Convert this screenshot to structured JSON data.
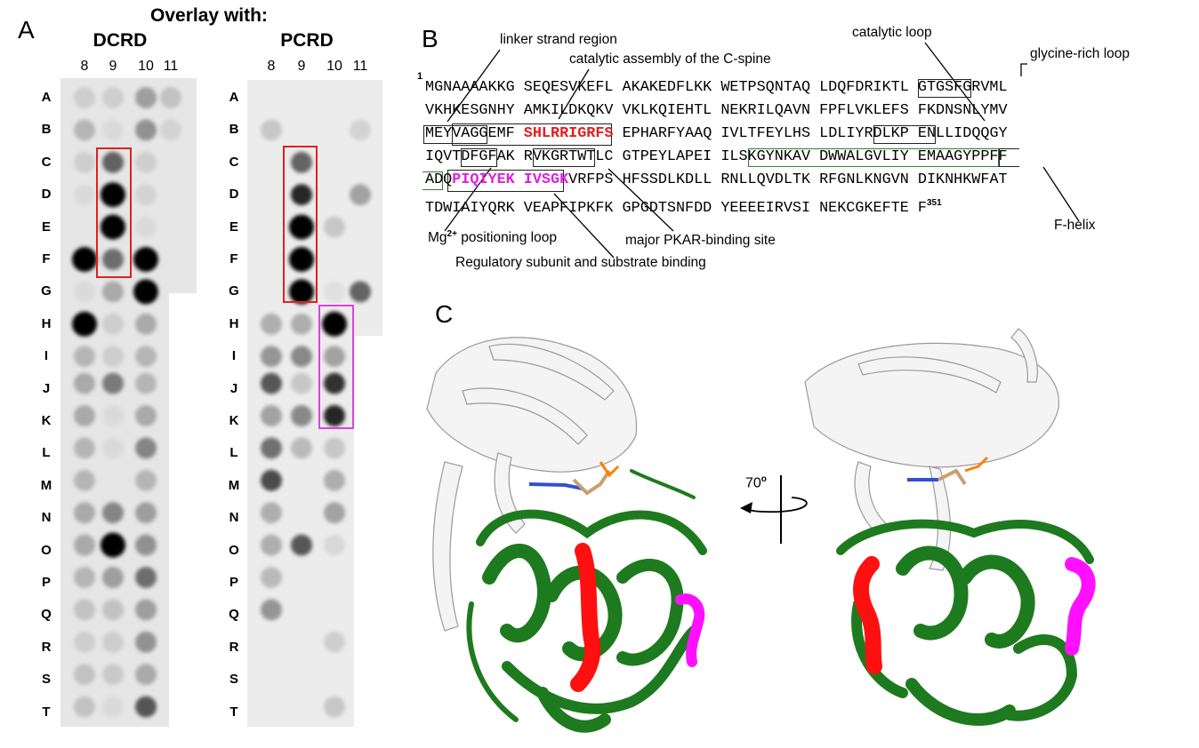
{
  "panelA": {
    "letter": "A",
    "title": "Overlay with:",
    "membranes": [
      {
        "name": "DCRD",
        "columns": [
          "8",
          "9",
          "10",
          "11"
        ]
      },
      {
        "name": "PCRD",
        "columns": [
          "8",
          "9",
          "10",
          "11"
        ]
      }
    ],
    "rows": [
      "A",
      "B",
      "C",
      "D",
      "E",
      "F",
      "G",
      "H",
      "I",
      "J",
      "K",
      "L",
      "M",
      "N",
      "O",
      "P",
      "Q",
      "R",
      "S",
      "T"
    ],
    "spot_intensity_DCRD": [
      [
        0.1,
        0.1,
        0.3,
        0.15
      ],
      [
        0.2,
        0.05,
        0.35,
        0.08
      ],
      [
        0.1,
        0.55,
        0.1,
        0
      ],
      [
        0.05,
        0.95,
        0.08,
        0
      ],
      [
        0,
        0.95,
        0.05,
        0
      ],
      [
        1,
        0.5,
        1,
        0
      ],
      [
        0.05,
        0.25,
        1,
        0
      ],
      [
        1,
        0.1,
        0.25
      ],
      [
        0.2,
        0.1,
        0.2
      ],
      [
        0.25,
        0.45,
        0.2
      ],
      [
        0.25,
        0.05,
        0.25
      ],
      [
        0.2,
        0.05,
        0.4
      ],
      [
        0.2,
        0,
        0.2
      ],
      [
        0.25,
        0.4,
        0.3
      ],
      [
        0.25,
        1,
        0.35
      ],
      [
        0.2,
        0.3,
        0.5
      ],
      [
        0.15,
        0.15,
        0.3
      ],
      [
        0.1,
        0.1,
        0.35
      ],
      [
        0.15,
        0.12,
        0.25
      ],
      [
        0.15,
        0.05,
        0.6
      ]
    ],
    "spot_intensity_PCRD": [
      [
        0,
        0,
        0,
        0
      ],
      [
        0.15,
        0,
        0,
        0.1
      ],
      [
        0,
        0.55,
        0,
        0
      ],
      [
        0,
        0.8,
        0,
        0.3
      ],
      [
        0,
        0.95,
        0.15,
        0
      ],
      [
        0,
        1,
        0,
        0
      ],
      [
        0,
        1,
        0.05,
        0.55
      ],
      [
        0.25,
        0.25,
        1
      ],
      [
        0.35,
        0.4,
        0.3
      ],
      [
        0.6,
        0.15,
        0.75
      ],
      [
        0.3,
        0.4,
        0.8
      ],
      [
        0.5,
        0.2,
        0.15
      ],
      [
        0.65,
        0,
        0.25
      ],
      [
        0.25,
        0,
        0.3
      ],
      [
        0.25,
        0.6,
        0.08
      ],
      [
        0.2,
        0,
        0
      ],
      [
        0.35,
        0,
        0
      ],
      [
        0,
        0,
        0.12
      ],
      [
        0,
        0,
        0
      ],
      [
        0,
        0,
        0.15
      ]
    ],
    "highlight_colors": {
      "red": "#e02020",
      "magenta": "#e040e0"
    }
  },
  "panelB": {
    "letter": "B",
    "start_number": "1",
    "end_number": "351",
    "lines": [
      "MGNAAAAKKG SEQESVKEFL AKAKEDFLKK WETPSQNTAQ LDQFDRIKTL GTGSFGRVML",
      "VKHKESGNHY AMKILDKQKV VKLKQIEHTL NEKRILQAVN FPFLVKLEFS FKDNSNLYMV",
      [
        "MEYVAGGEMF ",
        "SHLRRIGRFS",
        " EPHARFYAAQ IVLTFEYLHS LDLIYRDLKP ENLLIDQQGY"
      ],
      "IQVTDFGFAK RVKGRTWTLC GTPEYLAPEI ILSKGYNKAV DWWALGVLIY EMAAGYPPFF",
      [
        "ADQ",
        "PIQIYEK IVSGK",
        "VRFPS HFSSDLKDLL RNLLQVDLTK RFGNLKNGVN DIKNHKWFAT"
      ],
      "TDWIAIYQRK VEAPFIPKFK GPGDTSNFDD YEEEEIRVSI NEKCGKEFTE F"
    ],
    "annotations": {
      "linker": "linker strand region",
      "cspine": "catalytic assembly of the C-spine",
      "catloop": "catalytic loop",
      "glycine": "glycine-rich loop",
      "mg_pre": "Mg",
      "mg_sup": "2+",
      "mg_post": " positioning loop",
      "pkar": "major PKAR-binding site",
      "regulatory": "Regulatory subunit and substrate binding",
      "fhelix": "F-helix"
    }
  },
  "panelC": {
    "letter": "C",
    "rotation_value": "70",
    "rotation_unit": "o",
    "colors": {
      "n_lobe": "#f2f2f2",
      "c_lobe": "#1e7a1e",
      "red_region": "#ff1010",
      "magenta_region": "#ff10ff"
    }
  }
}
